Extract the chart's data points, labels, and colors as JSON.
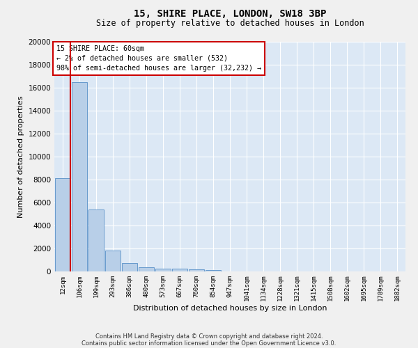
{
  "title1": "15, SHIRE PLACE, LONDON, SW18 3BP",
  "title2": "Size of property relative to detached houses in London",
  "xlabel": "Distribution of detached houses by size in London",
  "ylabel": "Number of detached properties",
  "bar_color": "#b8cfe8",
  "bar_edge_color": "#6699cc",
  "background_color": "#dce8f5",
  "grid_color": "#ffffff",
  "annotation_box_color": "#cc0000",
  "property_line_color": "#cc0000",
  "annotation_text": "15 SHIRE PLACE: 60sqm\n← 2% of detached houses are smaller (532)\n98% of semi-detached houses are larger (32,232) →",
  "footer1": "Contains HM Land Registry data © Crown copyright and database right 2024.",
  "footer2": "Contains public sector information licensed under the Open Government Licence v3.0.",
  "categories": [
    "12sqm",
    "106sqm",
    "199sqm",
    "293sqm",
    "386sqm",
    "480sqm",
    "573sqm",
    "667sqm",
    "760sqm",
    "854sqm",
    "947sqm",
    "1041sqm",
    "1134sqm",
    "1228sqm",
    "1321sqm",
    "1415sqm",
    "1508sqm",
    "1602sqm",
    "1695sqm",
    "1789sqm",
    "1882sqm"
  ],
  "values": [
    8100,
    16500,
    5400,
    1800,
    750,
    350,
    230,
    220,
    185,
    100,
    0,
    0,
    0,
    0,
    0,
    0,
    0,
    0,
    0,
    0,
    0
  ],
  "ylim": [
    0,
    20000
  ],
  "yticks": [
    0,
    2000,
    4000,
    6000,
    8000,
    10000,
    12000,
    14000,
    16000,
    18000,
    20000
  ],
  "fig_width": 6.0,
  "fig_height": 5.0,
  "dpi": 100
}
